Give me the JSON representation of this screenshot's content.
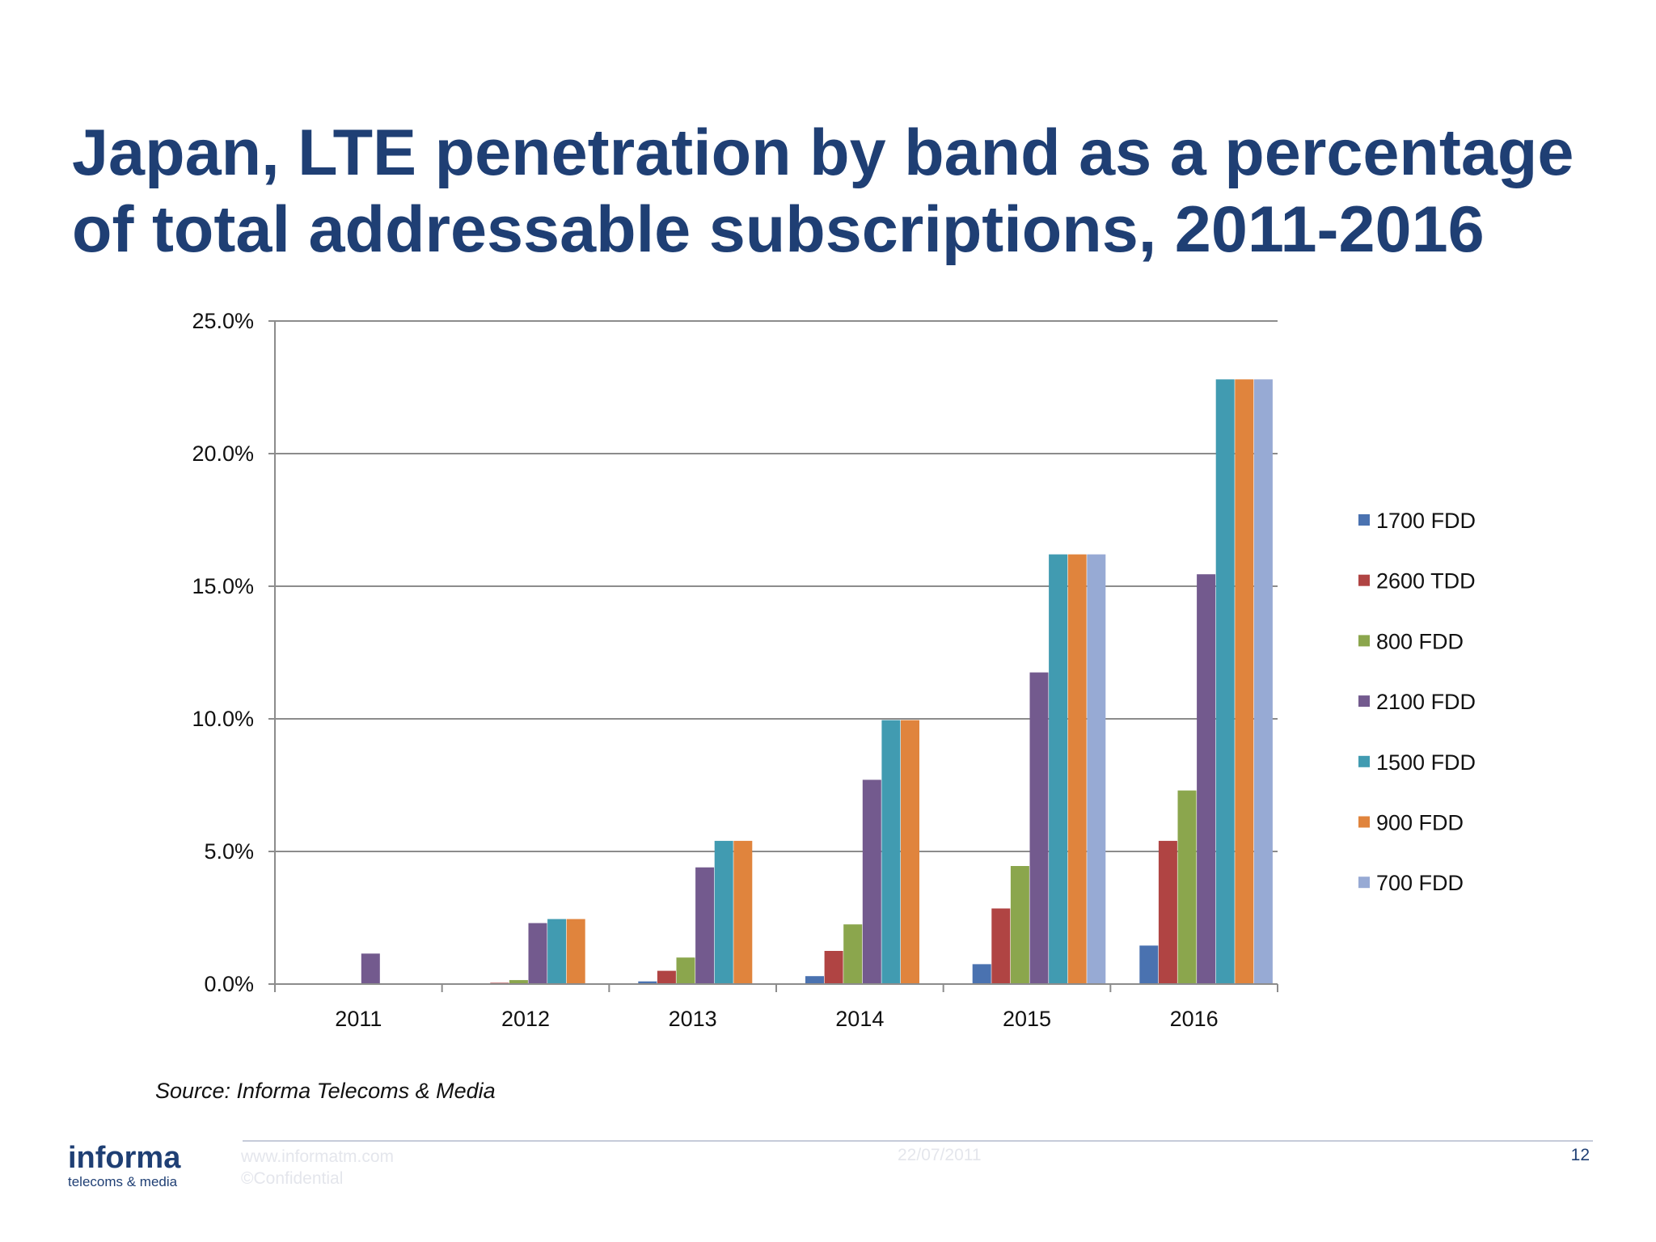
{
  "slide": {
    "title": "Japan, LTE penetration by band as a percentage of total addressable subscriptions, 2011-2016",
    "source": "Source: Informa Telecoms & Media",
    "footer": {
      "logo_main": "informa",
      "logo_sub": "telecoms & media",
      "url": "www.informatm.com",
      "confidential": "©Confidential",
      "date": "22/07/2011",
      "page_number": "12"
    },
    "colors": {
      "title": "#1f3f74"
    }
  },
  "chart_data": {
    "type": "bar",
    "title": "Japan, LTE penetration by band as a percentage of total addressable subscriptions, 2011-2016",
    "categories": [
      "2011",
      "2012",
      "2013",
      "2014",
      "2015",
      "2016"
    ],
    "y_ticks": [
      "0.0%",
      "5.0%",
      "10.0%",
      "15.0%",
      "20.0%",
      "25.0%"
    ],
    "ylim": [
      0,
      25
    ],
    "grid": true,
    "legend_position": "right",
    "series": [
      {
        "name": "1700 FDD",
        "color": "#4a72b0",
        "values": [
          0.0,
          0.0,
          0.1,
          0.3,
          0.75,
          1.45
        ]
      },
      {
        "name": "2600 TDD",
        "color": "#b04443",
        "values": [
          0.0,
          0.05,
          0.5,
          1.25,
          2.85,
          5.4
        ]
      },
      {
        "name": "800 FDD",
        "color": "#8ba64d",
        "values": [
          0.0,
          0.15,
          1.0,
          2.25,
          4.45,
          7.3
        ]
      },
      {
        "name": "2100 FDD",
        "color": "#735a8e",
        "values": [
          1.15,
          2.3,
          4.4,
          7.7,
          11.75,
          15.45
        ]
      },
      {
        "name": "1500 FDD",
        "color": "#419bb1",
        "values": [
          0.0,
          2.45,
          5.4,
          9.95,
          16.2,
          22.8
        ]
      },
      {
        "name": "900 FDD",
        "color": "#e0843d",
        "values": [
          0.0,
          2.45,
          5.4,
          9.95,
          16.2,
          22.8
        ]
      },
      {
        "name": "700 FDD",
        "color": "#97aad4",
        "values": [
          0.0,
          0.0,
          0.0,
          0.0,
          16.2,
          22.8
        ]
      }
    ]
  }
}
